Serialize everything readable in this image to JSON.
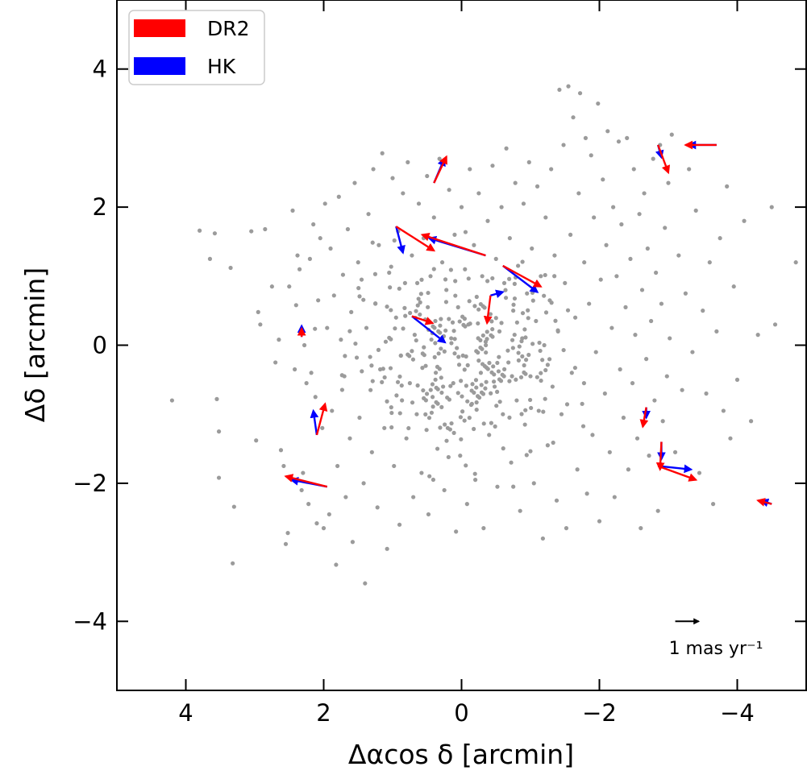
{
  "chart_data": {
    "type": "scatter",
    "xlabel": "Δαcos δ [arcmin]",
    "ylabel": "Δδ [arcmin]",
    "xlim": [
      5.0,
      -5.0
    ],
    "ylim": [
      -5.0,
      5.0
    ],
    "x_ticks": [
      4,
      2,
      0,
      -2,
      -4
    ],
    "y_ticks": [
      -4,
      -2,
      0,
      2,
      4
    ],
    "x_tick_labels": [
      "4",
      "2",
      "0",
      "−2",
      "−4"
    ],
    "y_tick_labels": [
      "−4",
      "−2",
      "0",
      "2",
      "4"
    ],
    "grid": false,
    "legend": {
      "placement": "top-left",
      "entries": [
        {
          "name": "DR2",
          "color": "#ff0000"
        },
        {
          "name": "HK",
          "color": "#0000ff"
        }
      ]
    },
    "scale_arrow": {
      "label": "1 mas yr⁻¹",
      "position": [
        -3.1,
        -4.0
      ],
      "dx": -0.34,
      "dy": 0.0,
      "color": "#000000"
    },
    "point_color": "#9b9b9b",
    "vector_colors": {
      "DR2": "#ff0000",
      "HK": "#0000ff"
    },
    "field_stars_seed": 7,
    "field_stars_count": 560,
    "field_stars": [
      [
        4.2,
        -0.8
      ],
      [
        3.8,
        1.66
      ],
      [
        3.65,
        1.25
      ],
      [
        3.58,
        1.62
      ],
      [
        3.55,
        -0.78
      ],
      [
        3.52,
        -1.25
      ],
      [
        3.52,
        -1.92
      ],
      [
        3.35,
        1.12
      ],
      [
        3.32,
        -3.16
      ],
      [
        3.3,
        -2.34
      ],
      [
        3.05,
        1.65
      ],
      [
        2.98,
        -1.38
      ],
      [
        2.95,
        0.48
      ],
      [
        2.92,
        0.3
      ],
      [
        2.85,
        1.68
      ],
      [
        2.75,
        0.85
      ],
      [
        2.7,
        -0.25
      ],
      [
        2.65,
        0.08
      ],
      [
        2.62,
        -1.52
      ],
      [
        2.58,
        -1.75
      ],
      [
        2.55,
        -2.88
      ],
      [
        2.52,
        -2.72
      ],
      [
        2.5,
        0.85
      ],
      [
        2.45,
        1.95
      ],
      [
        2.42,
        -0.35
      ],
      [
        2.4,
        0.58
      ],
      [
        2.38,
        1.3
      ],
      [
        2.35,
        1.1
      ],
      [
        2.32,
        -2.1
      ],
      [
        2.3,
        -1.85
      ],
      [
        2.28,
        0.0
      ],
      [
        2.25,
        -0.55
      ],
      [
        2.22,
        -2.3
      ],
      [
        2.2,
        1.25
      ],
      [
        2.18,
        -0.4
      ],
      [
        2.15,
        1.75
      ],
      [
        2.12,
        -0.75
      ],
      [
        2.1,
        -2.58
      ],
      [
        2.08,
        0.65
      ],
      [
        2.05,
        1.55
      ],
      [
        2.02,
        -1.2
      ],
      [
        2.0,
        -2.65
      ],
      [
        1.98,
        2.05
      ],
      [
        1.95,
        0.25
      ],
      [
        1.92,
        -2.45
      ],
      [
        1.9,
        1.4
      ],
      [
        1.88,
        -0.95
      ],
      [
        1.85,
        0.72
      ],
      [
        1.82,
        -3.18
      ],
      [
        1.8,
        -1.75
      ],
      [
        1.78,
        2.15
      ],
      [
        1.75,
        0.08
      ],
      [
        1.72,
        1.02
      ],
      [
        1.7,
        -0.45
      ],
      [
        1.68,
        -2.2
      ],
      [
        1.65,
        1.68
      ],
      [
        1.62,
        -1.35
      ],
      [
        1.6,
        0.48
      ],
      [
        1.58,
        -2.85
      ],
      [
        1.55,
        2.35
      ],
      [
        1.52,
        -0.18
      ],
      [
        1.5,
        1.2
      ],
      [
        1.48,
        -1.05
      ],
      [
        1.45,
        0.95
      ],
      [
        1.42,
        -2.0
      ],
      [
        1.4,
        -3.45
      ],
      [
        1.38,
        0.25
      ],
      [
        1.35,
        1.9
      ],
      [
        1.32,
        -0.65
      ],
      [
        1.3,
        -1.55
      ],
      [
        1.28,
        2.55
      ],
      [
        1.25,
        0.6
      ],
      [
        1.22,
        -2.35
      ],
      [
        1.2,
        1.45
      ],
      [
        1.18,
        -0.35
      ],
      [
        1.15,
        2.78
      ],
      [
        1.12,
        -1.2
      ],
      [
        1.1,
        0.05
      ],
      [
        1.08,
        -2.95
      ],
      [
        1.05,
        1.05
      ],
      [
        1.02,
        -0.9
      ],
      [
        1.0,
        2.42
      ],
      [
        0.98,
        -1.75
      ],
      [
        0.95,
        0.4
      ],
      [
        0.92,
        1.65
      ],
      [
        0.9,
        -2.6
      ],
      [
        0.88,
        -0.15
      ],
      [
        0.85,
        2.2
      ],
      [
        0.82,
        0.9
      ],
      [
        0.8,
        -1.35
      ],
      [
        0.78,
        2.65
      ],
      [
        0.75,
        -0.55
      ],
      [
        0.72,
        1.3
      ],
      [
        0.7,
        -2.2
      ],
      [
        0.68,
        0.15
      ],
      [
        0.65,
        -1.0
      ],
      [
        0.62,
        2.05
      ],
      [
        0.6,
        0.62
      ],
      [
        0.58,
        -1.85
      ],
      [
        0.55,
        1.55
      ],
      [
        0.52,
        -0.3
      ],
      [
        0.5,
        2.45
      ],
      [
        0.48,
        -2.45
      ],
      [
        0.45,
        1.0
      ],
      [
        0.42,
        -0.75
      ],
      [
        0.4,
        1.85
      ],
      [
        0.38,
        0.35
      ],
      [
        0.35,
        -1.5
      ],
      [
        0.32,
        2.7
      ],
      [
        0.3,
        -0.05
      ],
      [
        0.28,
        1.2
      ],
      [
        0.25,
        -2.1
      ],
      [
        0.22,
        0.8
      ],
      [
        0.2,
        -1.2
      ],
      [
        0.18,
        2.25
      ],
      [
        0.15,
        0.1
      ],
      [
        0.12,
        -0.55
      ],
      [
        0.1,
        1.6
      ],
      [
        0.08,
        -2.7
      ],
      [
        0.05,
        0.55
      ],
      [
        0.02,
        -1.6
      ],
      [
        0.0,
        2.0
      ],
      [
        -0.02,
        -0.15
      ],
      [
        -0.05,
        1.1
      ],
      [
        -0.08,
        -2.3
      ],
      [
        -0.1,
        0.3
      ],
      [
        -0.12,
        2.55
      ],
      [
        -0.15,
        -0.85
      ],
      [
        -0.18,
        1.45
      ],
      [
        -0.2,
        -1.95
      ],
      [
        -0.22,
        0.7
      ],
      [
        -0.25,
        2.2
      ],
      [
        -0.28,
        -0.4
      ],
      [
        -0.3,
        1.0
      ],
      [
        -0.32,
        -2.65
      ],
      [
        -0.35,
        0.05
      ],
      [
        -0.38,
        1.8
      ],
      [
        -0.4,
        -1.3
      ],
      [
        -0.42,
        0.45
      ],
      [
        -0.45,
        2.6
      ],
      [
        -0.48,
        -0.6
      ],
      [
        -0.5,
        1.25
      ],
      [
        -0.52,
        -2.05
      ],
      [
        -0.55,
        0.2
      ],
      [
        -0.58,
        2.0
      ],
      [
        -0.6,
        -1.0
      ],
      [
        -0.62,
        0.9
      ],
      [
        -0.65,
        2.85
      ],
      [
        -0.68,
        -0.25
      ],
      [
        -0.7,
        1.55
      ],
      [
        -0.72,
        -1.7
      ],
      [
        -0.75,
        0.5
      ],
      [
        -0.78,
        2.35
      ],
      [
        -0.8,
        -0.8
      ],
      [
        -0.82,
        1.15
      ],
      [
        -0.85,
        -2.4
      ],
      [
        -0.88,
        0.1
      ],
      [
        -0.9,
        2.05
      ],
      [
        -0.92,
        -1.15
      ],
      [
        -0.95,
        0.75
      ],
      [
        -0.98,
        2.65
      ],
      [
        -1.0,
        -0.45
      ],
      [
        -1.02,
        1.4
      ],
      [
        -1.05,
        -2.0
      ],
      [
        -1.08,
        0.35
      ],
      [
        -1.1,
        2.3
      ],
      [
        -1.12,
        -0.95
      ],
      [
        -1.15,
        1.0
      ],
      [
        -1.18,
        -2.8
      ],
      [
        -1.2,
        0.0
      ],
      [
        -1.22,
        1.85
      ],
      [
        -1.25,
        -1.45
      ],
      [
        -1.28,
        0.65
      ],
      [
        -1.3,
        2.55
      ],
      [
        -1.32,
        -0.6
      ],
      [
        -1.35,
        1.3
      ],
      [
        -1.38,
        -2.25
      ],
      [
        -1.4,
        0.2
      ],
      [
        -1.42,
        3.7
      ],
      [
        -1.45,
        -1.0
      ],
      [
        -1.48,
        2.9
      ],
      [
        -1.5,
        0.9
      ],
      [
        -1.52,
        -2.65
      ],
      [
        -1.55,
        3.75
      ],
      [
        -1.58,
        1.6
      ],
      [
        -1.6,
        -0.4
      ],
      [
        -1.62,
        3.3
      ],
      [
        -1.65,
        0.4
      ],
      [
        -1.68,
        -1.8
      ],
      [
        -1.7,
        2.2
      ],
      [
        -1.72,
        3.65
      ],
      [
        -1.75,
        -0.85
      ],
      [
        -1.78,
        1.2
      ],
      [
        -1.8,
        3.0
      ],
      [
        -1.82,
        -2.15
      ],
      [
        -1.85,
        0.6
      ],
      [
        -1.88,
        2.75
      ],
      [
        -1.9,
        -1.3
      ],
      [
        -1.92,
        1.85
      ],
      [
        -1.95,
        -0.1
      ],
      [
        -1.98,
        3.5
      ],
      [
        -2.0,
        -2.55
      ],
      [
        -2.02,
        0.95
      ],
      [
        -2.05,
        2.4
      ],
      [
        -2.08,
        -0.7
      ],
      [
        -2.1,
        1.45
      ],
      [
        -2.12,
        3.1
      ],
      [
        -2.15,
        -1.55
      ],
      [
        -2.18,
        0.25
      ],
      [
        -2.2,
        2.0
      ],
      [
        -2.22,
        -2.2
      ],
      [
        -2.25,
        1.0
      ],
      [
        -2.28,
        2.95
      ],
      [
        -2.3,
        -0.35
      ],
      [
        -2.32,
        1.75
      ],
      [
        -2.35,
        -1.05
      ],
      [
        -2.38,
        0.55
      ],
      [
        -2.4,
        3.0
      ],
      [
        -2.42,
        -1.8
      ],
      [
        -2.45,
        1.25
      ],
      [
        -2.48,
        -0.55
      ],
      [
        -2.5,
        2.55
      ],
      [
        -2.52,
        0.15
      ],
      [
        -2.55,
        -1.35
      ],
      [
        -2.58,
        1.9
      ],
      [
        -2.6,
        -2.65
      ],
      [
        -2.62,
        0.8
      ],
      [
        -2.65,
        2.2
      ],
      [
        -2.68,
        -0.2
      ],
      [
        -2.7,
        1.4
      ],
      [
        -2.72,
        -1.6
      ],
      [
        -2.75,
        0.35
      ],
      [
        -2.78,
        2.7
      ],
      [
        -2.8,
        -0.8
      ],
      [
        -2.82,
        1.05
      ],
      [
        -2.85,
        -2.4
      ],
      [
        -2.88,
        2.9
      ],
      [
        -2.9,
        0.6
      ],
      [
        -2.92,
        -1.1
      ],
      [
        -2.95,
        1.7
      ],
      [
        -2.98,
        -0.45
      ],
      [
        -3.0,
        2.35
      ],
      [
        -3.02,
        0.1
      ],
      [
        -3.05,
        3.05
      ],
      [
        -3.1,
        -1.55
      ],
      [
        -3.15,
        1.3
      ],
      [
        -3.2,
        -0.65
      ],
      [
        -3.25,
        0.75
      ],
      [
        -3.3,
        2.55
      ],
      [
        -3.35,
        -0.1
      ],
      [
        -3.4,
        1.95
      ],
      [
        -3.45,
        -1.85
      ],
      [
        -3.5,
        0.5
      ],
      [
        -3.55,
        -0.7
      ],
      [
        -3.6,
        1.2
      ],
      [
        -3.65,
        -2.3
      ],
      [
        -3.7,
        0.2
      ],
      [
        -3.75,
        1.55
      ],
      [
        -3.8,
        -0.95
      ],
      [
        -3.85,
        2.3
      ],
      [
        -3.9,
        -1.35
      ],
      [
        -3.95,
        0.85
      ],
      [
        -4.0,
        -0.5
      ],
      [
        -4.1,
        1.8
      ],
      [
        -4.2,
        -1.1
      ],
      [
        -4.3,
        0.15
      ],
      [
        -4.5,
        2.0
      ],
      [
        -4.55,
        0.3
      ],
      [
        -4.85,
        1.2
      ]
    ],
    "vectors": [
      {
        "x": 0.4,
        "y": 2.35,
        "DR2": [
          -0.18,
          0.38
        ],
        "HK": [
          -0.15,
          0.35
        ]
      },
      {
        "x": 0.95,
        "y": 1.72,
        "DR2": [
          -0.55,
          -0.35
        ],
        "HK": [
          -0.1,
          -0.38
        ]
      },
      {
        "x": -0.35,
        "y": 1.3,
        "DR2": [
          0.92,
          0.3
        ],
        "HK": [
          0.82,
          0.25
        ]
      },
      {
        "x": -0.6,
        "y": 1.15,
        "DR2": [
          -0.55,
          -0.3
        ],
        "HK": [
          -0.5,
          -0.38
        ]
      },
      {
        "x": -0.42,
        "y": 0.72,
        "DR2": [
          0.05,
          -0.4
        ],
        "HK": [
          -0.18,
          0.05
        ]
      },
      {
        "x": 0.72,
        "y": 0.42,
        "DR2": [
          -0.3,
          -0.1
        ],
        "HK": [
          -0.48,
          -0.38
        ]
      },
      {
        "x": 2.32,
        "y": 0.12,
        "DR2": [
          0.0,
          0.12
        ],
        "HK": [
          0.0,
          0.16
        ]
      },
      {
        "x": 2.1,
        "y": -1.3,
        "DR2": [
          -0.12,
          0.45
        ],
        "HK": [
          0.05,
          0.35
        ]
      },
      {
        "x": 1.95,
        "y": -2.05,
        "DR2": [
          0.6,
          0.15
        ],
        "HK": [
          0.52,
          0.1
        ]
      },
      {
        "x": -2.85,
        "y": 2.9,
        "DR2": [
          -0.15,
          -0.4
        ],
        "HK": [
          -0.05,
          -0.18
        ]
      },
      {
        "x": -3.7,
        "y": 2.9,
        "DR2": [
          0.45,
          0.0
        ],
        "HK": [
          0.4,
          0.0
        ]
      },
      {
        "x": -2.68,
        "y": -0.9,
        "DR2": [
          0.05,
          -0.28
        ],
        "HK": [
          0.0,
          -0.15
        ]
      },
      {
        "x": -2.85,
        "y": -1.75,
        "DR2": [
          -0.55,
          -0.2
        ],
        "HK": [
          -0.48,
          -0.05
        ]
      },
      {
        "x": -2.9,
        "y": -1.4,
        "DR2": [
          0.02,
          -0.4
        ],
        "HK": [
          0.0,
          -0.25
        ]
      },
      {
        "x": -4.5,
        "y": -2.3,
        "DR2": [
          0.2,
          0.05
        ],
        "HK": [
          0.15,
          0.05
        ]
      }
    ]
  }
}
